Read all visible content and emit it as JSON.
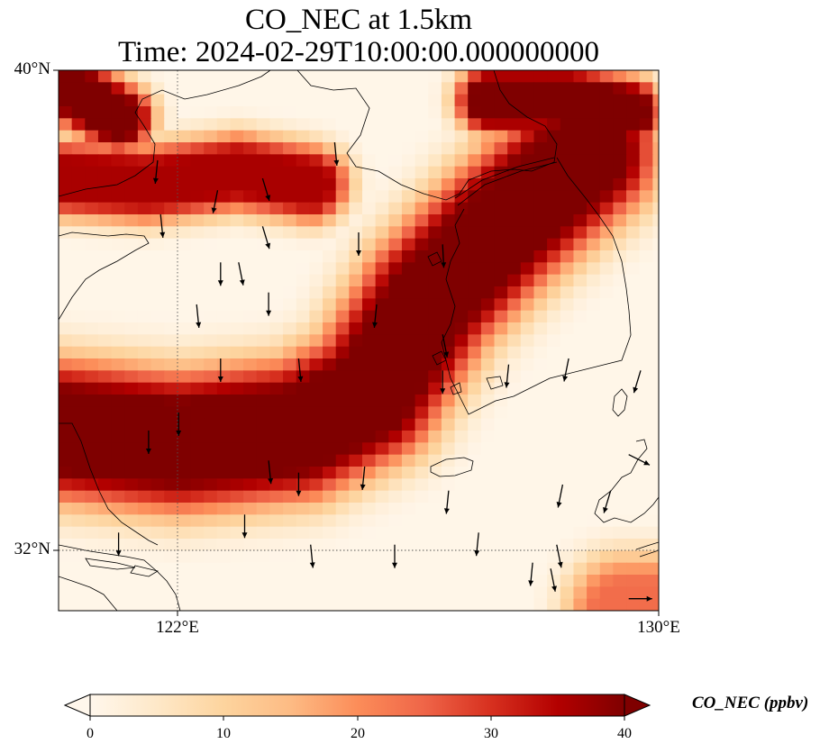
{
  "title": {
    "line1": "CO_NEC at 1.5km",
    "line2": "Time: 2024-02-29T10:00:00.000000000"
  },
  "axes": {
    "lon_range": [
      120,
      130
    ],
    "lat_range": [
      31,
      40
    ],
    "y_ticks": [
      {
        "value": 40,
        "label": "40°N"
      },
      {
        "value": 32,
        "label": "32°N"
      }
    ],
    "x_ticks": [
      {
        "value": 122,
        "label": "122°E"
      },
      {
        "value": 130,
        "label": "130°E"
      }
    ],
    "gridlines": "dotted at 122°E and 32°N"
  },
  "colorbar": {
    "label": "CO_NEC (ppbv)",
    "min": 0,
    "max": 40,
    "extend": "both",
    "colormap": "OrRd",
    "tick_values": [
      0,
      10,
      20,
      30,
      40
    ],
    "tick_labels": [
      "0",
      "10",
      "20",
      "30",
      "40"
    ]
  },
  "chart_data": {
    "type": "heatmap",
    "variable": "CO_NEC",
    "units": "ppbv",
    "level": "1.5km",
    "plumes": [
      {
        "name": "band",
        "points": [
          [
            120.0,
            34.0
          ],
          [
            122.0,
            33.8
          ],
          [
            124.0,
            34.0
          ],
          [
            125.2,
            34.6
          ],
          [
            126.2,
            36.2
          ],
          [
            127.4,
            37.4
          ],
          [
            128.8,
            38.6
          ]
        ],
        "width_deg": 1.0,
        "peak_ppbv": 42
      },
      {
        "name": "band",
        "points": [
          [
            120.0,
            38.2
          ],
          [
            121.5,
            38.1
          ],
          [
            123.0,
            38.3
          ],
          [
            124.2,
            38.1
          ]
        ],
        "width_deg": 0.55,
        "peak_ppbv": 36
      },
      {
        "name": "band",
        "points": [
          [
            127.2,
            39.5
          ],
          [
            128.5,
            39.5
          ],
          [
            129.5,
            39.3
          ]
        ],
        "width_deg": 0.5,
        "peak_ppbv": 42
      },
      {
        "name": "band",
        "points": [
          [
            120.0,
            39.8
          ],
          [
            121.0,
            39.2
          ]
        ],
        "width_deg": 0.5,
        "peak_ppbv": 42
      },
      {
        "name": "band",
        "points": [
          [
            130.0,
            31.0
          ],
          [
            129.4,
            31.0
          ]
        ],
        "width_deg": 0.8,
        "peak_ppbv": 24
      }
    ],
    "wind_vectors": [
      {
        "lon": 121.65,
        "lat": 38.5,
        "u": -0.1,
        "v": -1
      },
      {
        "lon": 122.65,
        "lat": 38.0,
        "u": -0.2,
        "v": -1
      },
      {
        "lon": 123.4,
        "lat": 38.2,
        "u": 0.3,
        "v": -1
      },
      {
        "lon": 124.6,
        "lat": 38.8,
        "u": 0.1,
        "v": -1
      },
      {
        "lon": 121.7,
        "lat": 37.6,
        "u": 0.1,
        "v": -1
      },
      {
        "lon": 123.4,
        "lat": 37.4,
        "u": 0.3,
        "v": -1
      },
      {
        "lon": 125.0,
        "lat": 37.3,
        "u": 0,
        "v": -1
      },
      {
        "lon": 126.4,
        "lat": 37.1,
        "u": 0.05,
        "v": -1
      },
      {
        "lon": 122.7,
        "lat": 36.8,
        "u": 0,
        "v": -1
      },
      {
        "lon": 123.0,
        "lat": 36.8,
        "u": 0.2,
        "v": -1
      },
      {
        "lon": 123.5,
        "lat": 36.3,
        "u": 0,
        "v": -1
      },
      {
        "lon": 122.3,
        "lat": 36.1,
        "u": 0.1,
        "v": -1
      },
      {
        "lon": 125.3,
        "lat": 36.1,
        "u": -0.1,
        "v": -1
      },
      {
        "lon": 126.4,
        "lat": 35.6,
        "u": 0.2,
        "v": -1
      },
      {
        "lon": 122.7,
        "lat": 35.2,
        "u": 0,
        "v": -1
      },
      {
        "lon": 124.0,
        "lat": 35.2,
        "u": 0.1,
        "v": -1
      },
      {
        "lon": 126.4,
        "lat": 35.0,
        "u": 0,
        "v": -1
      },
      {
        "lon": 127.5,
        "lat": 35.1,
        "u": -0.1,
        "v": -1
      },
      {
        "lon": 128.5,
        "lat": 35.2,
        "u": -0.2,
        "v": -1
      },
      {
        "lon": 129.7,
        "lat": 35.0,
        "u": -0.3,
        "v": -1
      },
      {
        "lon": 121.5,
        "lat": 34.0,
        "u": 0,
        "v": -1
      },
      {
        "lon": 122.0,
        "lat": 34.3,
        "u": 0,
        "v": -1
      },
      {
        "lon": 123.5,
        "lat": 33.5,
        "u": 0.1,
        "v": -1
      },
      {
        "lon": 124.0,
        "lat": 33.3,
        "u": 0,
        "v": -1
      },
      {
        "lon": 125.1,
        "lat": 33.4,
        "u": -0.1,
        "v": -1
      },
      {
        "lon": 126.5,
        "lat": 33.0,
        "u": -0.1,
        "v": -1
      },
      {
        "lon": 128.4,
        "lat": 33.1,
        "u": -0.2,
        "v": -1
      },
      {
        "lon": 129.2,
        "lat": 33.0,
        "u": -0.3,
        "v": -1
      },
      {
        "lon": 127.0,
        "lat": 32.3,
        "u": -0.1,
        "v": -1
      },
      {
        "lon": 128.3,
        "lat": 32.1,
        "u": 0.2,
        "v": -1
      },
      {
        "lon": 121.0,
        "lat": 32.3,
        "u": 0,
        "v": -1
      },
      {
        "lon": 123.1,
        "lat": 32.6,
        "u": 0,
        "v": -1
      },
      {
        "lon": 124.2,
        "lat": 32.1,
        "u": 0.1,
        "v": -1
      },
      {
        "lon": 125.6,
        "lat": 32.1,
        "u": 0,
        "v": -1
      },
      {
        "lon": 127.9,
        "lat": 31.8,
        "u": -0.1,
        "v": -1
      },
      {
        "lon": 128.2,
        "lat": 31.7,
        "u": 0.2,
        "v": -1
      },
      {
        "lon": 129.5,
        "lat": 33.6,
        "u": 0.6,
        "v": -0.3
      },
      {
        "lon": 129.5,
        "lat": 31.2,
        "u": 1,
        "v": 0
      }
    ]
  }
}
